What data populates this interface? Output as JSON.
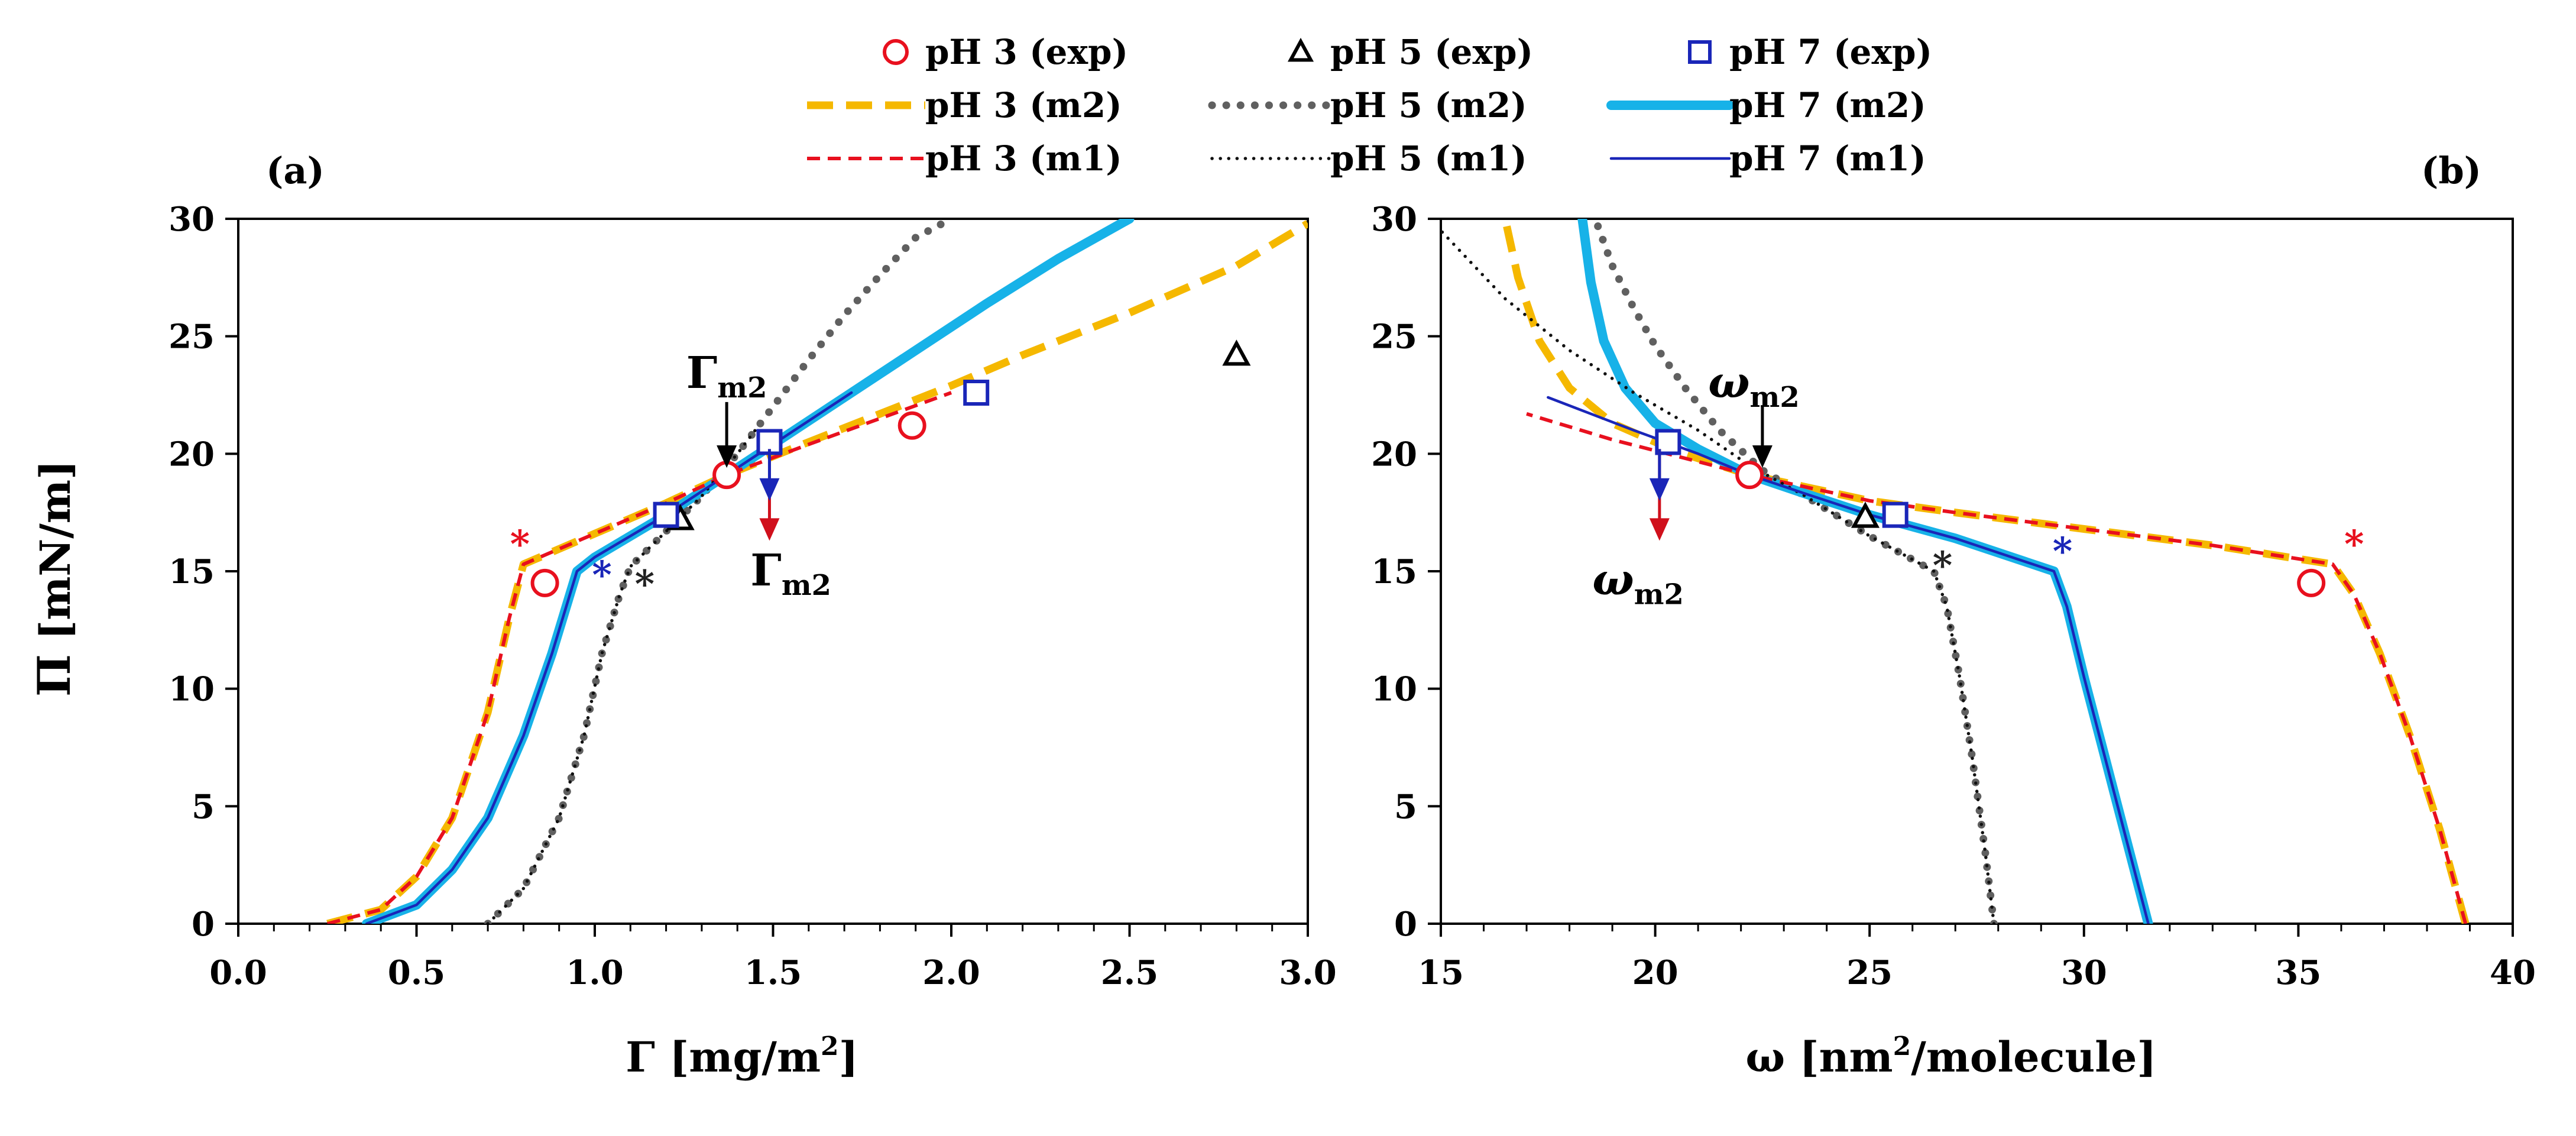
{
  "chart_data": [
    {
      "type": "line",
      "panel_label": "(a)",
      "xlabel": "Γ [mg/m²]",
      "xlabel_symbol": "Γ",
      "xlabel_unit": "[mg/m",
      "xlabel_sup": "2",
      "xlabel_end": "]",
      "ylabel": "Π [mN/m]",
      "xlim": [
        0,
        3
      ],
      "ylim": [
        0,
        30
      ],
      "xticks": [
        0.0,
        0.5,
        1.0,
        1.5,
        2.0,
        2.5,
        3.0
      ],
      "xtick_labels": [
        "0.0",
        "0.5",
        "1.0",
        "1.5",
        "2.0",
        "2.5",
        "3.0"
      ],
      "yticks": [
        0,
        5,
        10,
        15,
        20,
        25,
        30
      ],
      "ytick_labels": [
        "0",
        "5",
        "10",
        "15",
        "20",
        "25",
        "30"
      ],
      "annotations": [
        {
          "text": "Γ",
          "sub": "m2",
          "x": 1.37,
          "y": 22.8,
          "color": "#000000"
        },
        {
          "text": "Γ",
          "sub": "m2",
          "x": 1.55,
          "y": 14.4,
          "color": "#000000"
        },
        {
          "text": "*",
          "x": 0.79,
          "y": 15.6,
          "color": "#e8101e"
        },
        {
          "text": "*",
          "x": 1.02,
          "y": 14.3,
          "color": "#1a26b8"
        },
        {
          "text": "*",
          "x": 1.14,
          "y": 13.9,
          "color": "#222222"
        }
      ],
      "series": [
        {
          "name": "pH 3 (exp)",
          "kind": "marker",
          "marker": "circle",
          "color": "#e8101e",
          "x": [
            0.86,
            1.37,
            1.89
          ],
          "y": [
            14.5,
            19.1,
            21.2
          ]
        },
        {
          "name": "pH 5 (exp)",
          "kind": "marker",
          "marker": "triangle",
          "color": "#000000",
          "x": [
            1.24,
            2.8
          ],
          "y": [
            17.2,
            24.2
          ]
        },
        {
          "name": "pH 7 (exp)",
          "kind": "marker",
          "marker": "square",
          "color": "#1a26b8",
          "x": [
            1.2,
            1.49,
            2.07
          ],
          "y": [
            17.4,
            20.5,
            22.6
          ]
        },
        {
          "name": "pH 3 (m2)",
          "kind": "line",
          "style": "dash-thick",
          "color": "#f5b800",
          "x": [
            0.25,
            0.4,
            0.5,
            0.6,
            0.7,
            0.76,
            0.8,
            1.0,
            1.2,
            1.37,
            1.6,
            1.8,
            2.0,
            2.2,
            2.5,
            2.8,
            3.0
          ],
          "y": [
            0,
            0.6,
            2.0,
            4.5,
            9.0,
            13.0,
            15.3,
            16.6,
            17.9,
            19.1,
            20.5,
            21.7,
            22.9,
            24.2,
            26.0,
            28.0,
            29.8
          ]
        },
        {
          "name": "pH 5 (m2)",
          "kind": "line",
          "style": "dot-thick",
          "color": "#606060",
          "x": [
            0.7,
            0.8,
            0.9,
            0.97,
            1.02,
            1.07,
            1.1,
            1.2,
            1.3,
            1.4,
            1.5,
            1.6,
            1.7,
            1.8,
            1.9,
            2.0
          ],
          "y": [
            0,
            1.5,
            4.5,
            8.0,
            11.5,
            14.0,
            15.2,
            16.7,
            18.2,
            20.0,
            22.0,
            24.0,
            25.9,
            27.6,
            29.2,
            30.0
          ]
        },
        {
          "name": "pH 7 (m2)",
          "kind": "line",
          "style": "solid-thick",
          "color": "#17b2e8",
          "x": [
            0.36,
            0.5,
            0.6,
            0.7,
            0.8,
            0.88,
            0.95,
            1.0,
            1.2,
            1.37,
            1.5,
            1.7,
            1.9,
            2.1,
            2.3,
            2.5
          ],
          "y": [
            0,
            0.8,
            2.3,
            4.5,
            8.0,
            11.5,
            15.0,
            15.6,
            17.4,
            19.1,
            20.4,
            22.4,
            24.4,
            26.4,
            28.3,
            30.0
          ]
        },
        {
          "name": "pH 3 (m1)",
          "kind": "line",
          "style": "dash-thin",
          "color": "#e8101e",
          "x": [
            0.25,
            0.4,
            0.5,
            0.6,
            0.7,
            0.76,
            0.8,
            1.0,
            1.2,
            1.37,
            1.6,
            1.8,
            2.0
          ],
          "y": [
            0,
            0.6,
            2.0,
            4.5,
            9.0,
            13.0,
            15.3,
            16.6,
            17.9,
            19.1,
            20.4,
            21.5,
            22.6
          ]
        },
        {
          "name": "pH 5 (m1)",
          "kind": "line",
          "style": "dot-thin",
          "color": "#111111",
          "x": [
            0.7,
            0.8,
            0.9,
            0.97,
            1.02,
            1.07,
            1.1,
            1.2,
            1.3,
            1.4,
            1.45
          ],
          "y": [
            0,
            1.5,
            4.5,
            8.0,
            11.5,
            14.0,
            15.2,
            16.7,
            18.2,
            20.0,
            21.0
          ]
        },
        {
          "name": "pH 7 (m1)",
          "kind": "line",
          "style": "solid-thin",
          "color": "#1a26b8",
          "x": [
            0.36,
            0.5,
            0.6,
            0.7,
            0.8,
            0.88,
            0.95,
            1.0,
            1.2,
            1.37,
            1.5,
            1.72
          ],
          "y": [
            0,
            0.8,
            2.3,
            4.5,
            8.0,
            11.5,
            15.0,
            15.6,
            17.4,
            19.1,
            20.4,
            22.6
          ]
        }
      ]
    },
    {
      "type": "line",
      "panel_label": "(b)",
      "xlabel": "ω [nm²/molecule]",
      "xlabel_symbol": "ω",
      "xlabel_unit": "[nm",
      "xlabel_sup": "2",
      "xlabel_end": "/molecule]",
      "ylabel": "",
      "xlim": [
        15,
        40
      ],
      "ylim": [
        0,
        30
      ],
      "xticks": [
        15,
        20,
        25,
        30,
        35,
        40
      ],
      "xtick_labels": [
        "15",
        "20",
        "25",
        "30",
        "35",
        "40"
      ],
      "yticks": [
        0,
        5,
        10,
        15,
        20,
        25,
        30
      ],
      "ytick_labels": [
        "0",
        "5",
        "10",
        "15",
        "20",
        "25",
        "30"
      ],
      "annotations": [
        {
          "text": "ω",
          "sub": "m2",
          "x": 22.3,
          "y": 22.4,
          "color": "#000000"
        },
        {
          "text": "ω",
          "sub": "m2",
          "x": 19.6,
          "y": 14.0,
          "color": "#000000"
        },
        {
          "text": "*",
          "x": 36.3,
          "y": 15.6,
          "color": "#e8101e"
        },
        {
          "text": "*",
          "x": 29.5,
          "y": 15.3,
          "color": "#1a26b8"
        },
        {
          "text": "*",
          "x": 26.7,
          "y": 14.7,
          "color": "#222222"
        }
      ],
      "series": [
        {
          "name": "pH 3 (exp)",
          "kind": "marker",
          "marker": "circle",
          "color": "#e8101e",
          "x": [
            35.3,
            22.2
          ],
          "y": [
            14.5,
            19.1
          ]
        },
        {
          "name": "pH 5 (exp)",
          "kind": "marker",
          "marker": "triangle",
          "color": "#000000",
          "x": [
            24.9
          ],
          "y": [
            17.3
          ]
        },
        {
          "name": "pH 7 (exp)",
          "kind": "marker",
          "marker": "square",
          "color": "#1a26b8",
          "x": [
            25.6,
            20.3
          ],
          "y": [
            17.4,
            20.5
          ]
        },
        {
          "name": "pH 3 (m2)",
          "kind": "line",
          "style": "dash-thick",
          "color": "#f5b800",
          "x": [
            38.9,
            38.3,
            37.6,
            36.9,
            36.3,
            35.8,
            33.0,
            30.0,
            27.0,
            25.0,
            22.2,
            20.5,
            19.0,
            18.0,
            17.3,
            16.8,
            16.5
          ],
          "y": [
            0,
            4.0,
            8.0,
            11.5,
            14.0,
            15.3,
            16.1,
            16.8,
            17.5,
            18.0,
            19.1,
            20.1,
            21.3,
            22.8,
            24.8,
            27.5,
            30.0
          ]
        },
        {
          "name": "pH 5 (m2)",
          "kind": "line",
          "style": "dot-thick",
          "color": "#606060",
          "x": [
            27.9,
            27.7,
            27.4,
            27.1,
            26.8,
            26.5,
            25.0,
            23.5,
            22.5,
            21.5,
            20.7,
            20.0,
            19.5,
            19.0,
            18.6
          ],
          "y": [
            0,
            3.0,
            7.0,
            10.5,
            13.5,
            15.0,
            16.5,
            18.2,
            19.3,
            21.0,
            22.8,
            24.6,
            26.2,
            28.0,
            30.0
          ]
        },
        {
          "name": "pH 7 (m2)",
          "kind": "line",
          "style": "solid-thick",
          "color": "#17b2e8",
          "x": [
            31.5,
            31.0,
            30.5,
            30.0,
            29.6,
            29.3,
            27.0,
            25.0,
            23.5,
            22.2,
            21.0,
            20.0,
            19.3,
            18.8,
            18.5,
            18.3
          ],
          "y": [
            0,
            3.5,
            7.0,
            10.5,
            13.5,
            15.0,
            16.4,
            17.4,
            18.3,
            19.1,
            20.2,
            21.3,
            22.8,
            24.8,
            27.3,
            30.0
          ]
        },
        {
          "name": "pH 3 (m1)",
          "kind": "line",
          "style": "dash-thin",
          "color": "#e8101e",
          "x": [
            38.9,
            38.3,
            37.6,
            36.9,
            36.3,
            35.8,
            33.0,
            30.0,
            27.0,
            25.0,
            22.2,
            20.5,
            19.0,
            17.0
          ],
          "y": [
            0,
            4.0,
            8.0,
            11.5,
            14.0,
            15.3,
            16.1,
            16.8,
            17.5,
            18.0,
            19.1,
            19.9,
            20.6,
            21.7
          ]
        },
        {
          "name": "pH 5 (m1)",
          "kind": "line",
          "style": "dot-thin",
          "color": "#111111",
          "x": [
            27.9,
            27.7,
            27.4,
            27.1,
            26.8,
            26.5,
            25.0,
            23.5,
            22.2,
            21.0,
            19.5,
            18.0,
            16.5,
            15.0
          ],
          "y": [
            0,
            3.0,
            7.0,
            10.5,
            13.5,
            15.0,
            16.5,
            18.2,
            19.5,
            21.0,
            22.6,
            24.4,
            26.6,
            29.5
          ]
        },
        {
          "name": "pH 7 (m1)",
          "kind": "line",
          "style": "solid-thin",
          "color": "#1a26b8",
          "x": [
            31.5,
            31.0,
            30.5,
            30.0,
            29.6,
            29.3,
            27.0,
            25.0,
            23.5,
            22.2,
            21.0,
            19.5,
            18.5,
            17.5
          ],
          "y": [
            0,
            3.5,
            7.0,
            10.5,
            13.5,
            15.0,
            16.4,
            17.4,
            18.3,
            19.1,
            20.0,
            21.0,
            21.7,
            22.4
          ]
        }
      ]
    }
  ],
  "shared": {
    "ylabel_symbol": "Π",
    "ylabel_unit": "[mN/m]"
  }
}
